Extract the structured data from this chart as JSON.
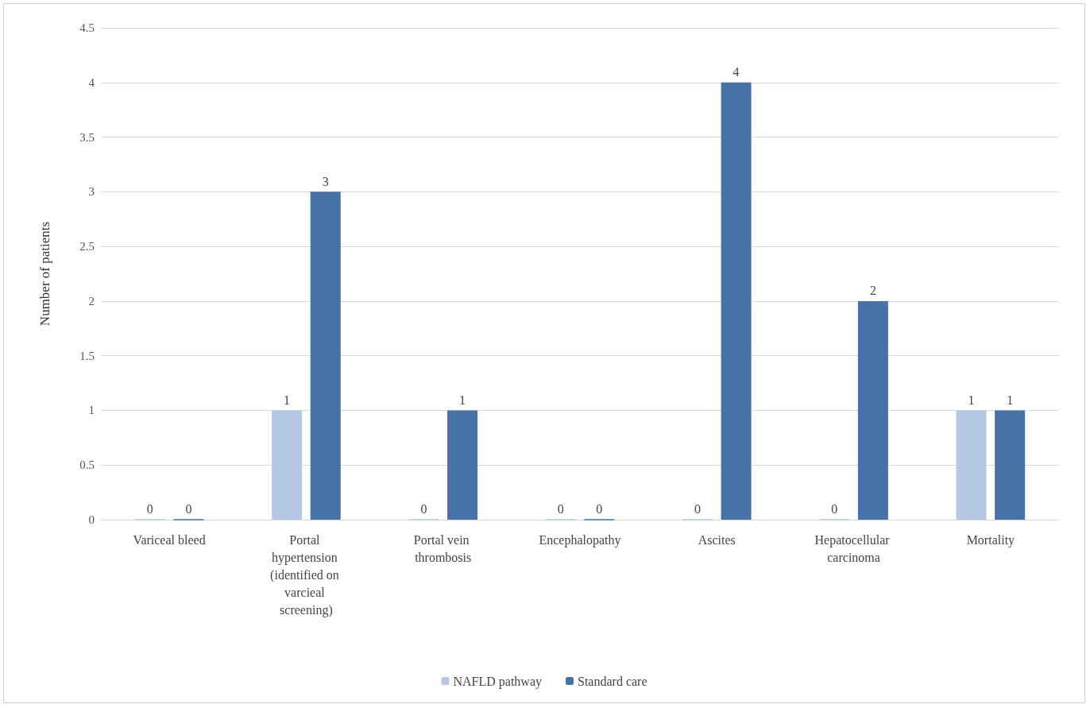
{
  "chart_data": {
    "type": "bar",
    "ylabel": "Number of patients",
    "categories": [
      "Variceal bleed",
      "Portal hypertension (identified on varcieal screening)",
      "Portal vein thrombosis",
      "Encephalopathy",
      "Ascites",
      "Hepatocellular carcinoma",
      "Mortality"
    ],
    "series": [
      {
        "name": "NAFLD pathway",
        "color": "#b4c8e4",
        "values": [
          0,
          1,
          0,
          0,
          0,
          0,
          1
        ]
      },
      {
        "name": "Standard care",
        "color": "#4672a8",
        "values": [
          0,
          3,
          1,
          0,
          4,
          2,
          1
        ]
      }
    ],
    "ylim": [
      0,
      4.5
    ],
    "yticks": [
      0,
      0.5,
      1,
      1.5,
      2,
      2.5,
      3,
      3.5,
      4,
      4.5
    ],
    "grid": "y",
    "legend": "bottom",
    "data_labels": true
  }
}
